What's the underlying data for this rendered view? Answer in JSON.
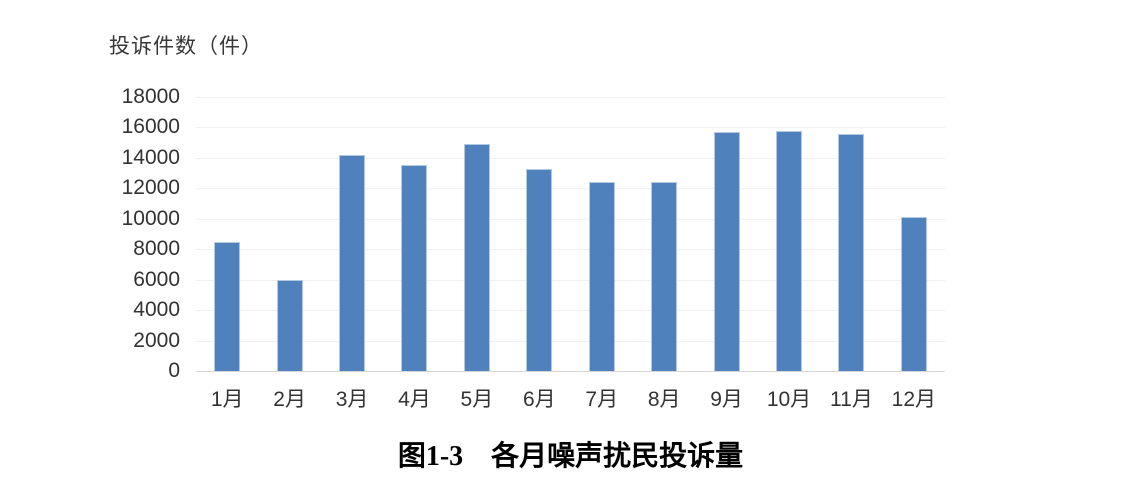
{
  "chart_data": {
    "type": "bar",
    "title": "图1-3 各月噪声扰民投诉量",
    "ylabel": "投诉件数（件）",
    "xlabel": "",
    "categories": [
      "1月",
      "2月",
      "3月",
      "4月",
      "5月",
      "6月",
      "7月",
      "8月",
      "9月",
      "10月",
      "11月",
      "12月"
    ],
    "values": [
      8500,
      6000,
      14200,
      13500,
      14900,
      13250,
      12400,
      12400,
      15700,
      15750,
      15550,
      10100
    ],
    "ylim": [
      0,
      18000
    ],
    "yticks": [
      0,
      2000,
      4000,
      6000,
      8000,
      10000,
      12000,
      14000,
      16000,
      18000
    ],
    "grid": true,
    "legend": false,
    "bar_color": "#4f81bd",
    "bar_border_color": "#b3c9e2",
    "gridline_color": "#f0f0f0",
    "axis_line_color": "#d6d6d6"
  },
  "caption": {
    "label": "图1-3",
    "title": "各月噪声扰民投诉量"
  }
}
